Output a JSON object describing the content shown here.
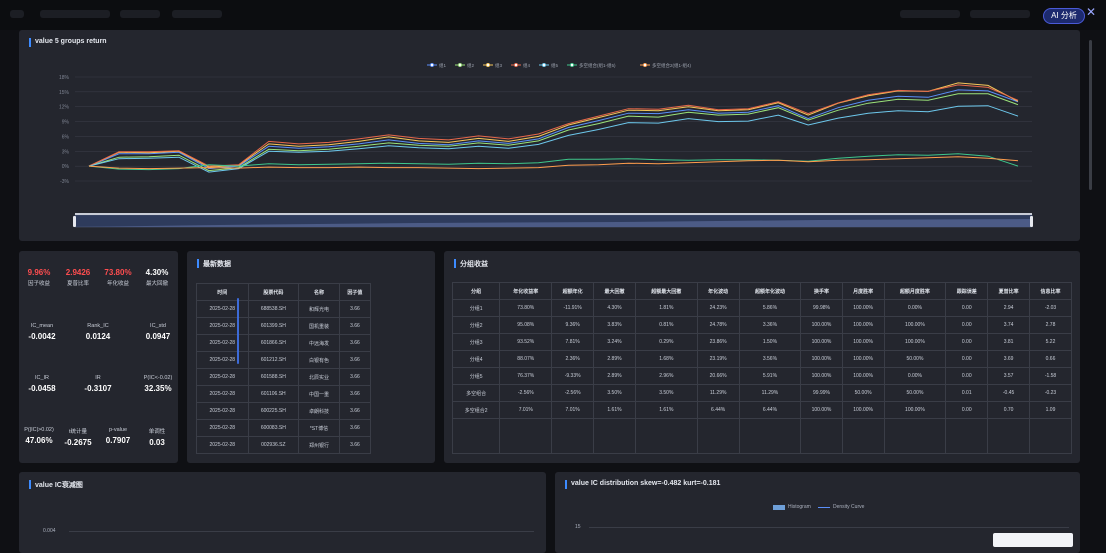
{
  "toolbar": {
    "ai_label": "AI 分析"
  },
  "line_chart": {
    "title": "value 5 groups return",
    "legend": [
      "组1",
      "组2",
      "组3",
      "组4",
      "组5",
      "多空组合(组1-组5)",
      "多空组合2(组1-组4)"
    ],
    "colors": [
      "#5b8ff9",
      "#9be37a",
      "#f6c75a",
      "#e8684a",
      "#6dc8ec",
      "#3fc78c",
      "#ff9d4d"
    ]
  },
  "chart_data": {
    "type": "line",
    "y_ticks": [
      "18%",
      "15%",
      "12%",
      "9%",
      "6%",
      "3%",
      "0%",
      "-3%"
    ],
    "ylim": [
      -3,
      18
    ],
    "grid": true,
    "legend_position": "top-center",
    "series": [
      {
        "name": "组1",
        "values": [
          0,
          2.5,
          2.5,
          2.8,
          -0.5,
          0,
          4,
          3.6,
          3.9,
          4.5,
          5.3,
          4.6,
          4.3,
          5.1,
          4.6,
          5.5,
          7.8,
          9.2,
          10.7,
          10.6,
          11.4,
          10.7,
          10.9,
          12.2,
          9.6,
          11.8,
          13.3,
          14.1,
          13.9,
          15.4,
          15.2,
          13.0
        ]
      },
      {
        "name": "组2",
        "values": [
          0,
          1.8,
          1.9,
          2.2,
          -0.9,
          -0.3,
          3.4,
          3.1,
          3.4,
          4.0,
          4.7,
          4.2,
          4.0,
          4.7,
          4.2,
          5.1,
          7.3,
          8.6,
          10.1,
          9.9,
          10.9,
          10.3,
          10.5,
          11.8,
          9.3,
          11.3,
          12.7,
          13.5,
          13.3,
          14.6,
          14.6,
          12.4
        ]
      },
      {
        "name": "组3",
        "values": [
          0,
          2.8,
          2.7,
          3.0,
          -0.2,
          0.2,
          4.5,
          4.0,
          4.3,
          5.0,
          5.9,
          5.1,
          4.8,
          5.6,
          5.0,
          6.0,
          8.3,
          9.8,
          11.3,
          11.2,
          12.0,
          11.2,
          11.4,
          12.8,
          10.3,
          12.7,
          14.2,
          15.2,
          15.1,
          16.8,
          16.3,
          13.1
        ]
      },
      {
        "name": "组4",
        "values": [
          0,
          2.9,
          2.9,
          3.1,
          0.0,
          0.3,
          5.0,
          4.5,
          4.8,
          5.5,
          6.3,
          5.6,
          5.3,
          6.1,
          5.5,
          6.5,
          8.6,
          10.1,
          11.6,
          11.5,
          12.3,
          11.4,
          11.6,
          13.0,
          10.6,
          12.8,
          14.4,
          15.3,
          15.1,
          16.4,
          15.9,
          13.3
        ]
      },
      {
        "name": "组5",
        "values": [
          0,
          1.5,
          1.6,
          1.8,
          -1.2,
          -0.5,
          3.0,
          2.8,
          3.0,
          3.5,
          4.1,
          3.7,
          3.5,
          4.0,
          3.6,
          4.4,
          6.2,
          7.4,
          8.8,
          8.7,
          9.6,
          9.0,
          9.1,
          10.3,
          8.3,
          9.7,
          10.7,
          11.2,
          11.0,
          12.1,
          12.2,
          10.1
        ]
      },
      {
        "name": "多空组合(组1-组5)",
        "values": [
          0,
          -0.6,
          -0.7,
          -0.5,
          0.3,
          0,
          0.5,
          0.3,
          0.4,
          0.5,
          0.6,
          0.5,
          0.4,
          0.6,
          0.5,
          0.7,
          1.4,
          1.4,
          1.5,
          1.3,
          1.2,
          1.3,
          1.3,
          1.2,
          1.0,
          1.6,
          2.0,
          2.3,
          2.2,
          2.5,
          2.0,
          0.0
        ]
      },
      {
        "name": "多空组合2(组1-组4)",
        "values": [
          0,
          -0.4,
          -0.5,
          -0.4,
          -0.3,
          -0.4,
          -0.2,
          -0.3,
          -0.3,
          -0.2,
          -0.3,
          -0.3,
          -0.4,
          -0.5,
          -0.4,
          -0.3,
          0.2,
          0.3,
          0.6,
          0.5,
          0.7,
          0.9,
          1.1,
          1.2,
          0.9,
          1.2,
          1.3,
          1.5,
          1.7,
          1.9,
          1.6,
          1.1
        ]
      }
    ]
  },
  "stats": {
    "row1": [
      {
        "value": "9.96%",
        "label": "因子收益",
        "color": "#ff4d4f"
      },
      {
        "value": "2.9426",
        "label": "夏普比率",
        "color": "#ff4d4f"
      },
      {
        "value": "73.80%",
        "label": "年化收益",
        "color": "#ff4d4f"
      },
      {
        "value": "4.30%",
        "label": "最大回撤",
        "color": "#ffffff"
      }
    ],
    "row2": [
      {
        "value": "-0.0042",
        "label": "IC_mean"
      },
      {
        "value": "0.0124",
        "label": "Rank_IC"
      },
      {
        "value": "0.0947",
        "label": "IC_std"
      }
    ],
    "row3": [
      {
        "value": "-0.0458",
        "label": "IC_IR"
      },
      {
        "value": "-0.3107",
        "label": "IR"
      },
      {
        "value": "32.35%",
        "label": "P(IC<-0.02)"
      }
    ],
    "row4": [
      {
        "value": "47.06%",
        "label": "P(|IC|>0.02)"
      },
      {
        "value": "-0.2675",
        "label": "t统计量"
      },
      {
        "value": "0.7907",
        "label": "p-value"
      },
      {
        "value": "0.03",
        "label": "单调性"
      }
    ]
  },
  "latest": {
    "title": "最新数据",
    "headers": [
      "时间",
      "股票代码",
      "名称",
      "因子值"
    ],
    "rows": [
      [
        "2025-02-28",
        "688538.SH",
        "和辉光电",
        "3.66"
      ],
      [
        "2025-02-28",
        "601399.SH",
        "国机重装",
        "3.66"
      ],
      [
        "2025-02-28",
        "601866.SH",
        "中远海发",
        "3.66"
      ],
      [
        "2025-02-28",
        "601212.SH",
        "白银有色",
        "3.66"
      ],
      [
        "2025-02-28",
        "601588.SH",
        "北辰实业",
        "3.66"
      ],
      [
        "2025-02-28",
        "601106.SH",
        "中国一重",
        "3.66"
      ],
      [
        "2025-02-28",
        "600225.SH",
        "卓朗科技",
        "3.66"
      ],
      [
        "2025-02-28",
        "600083.SH",
        "*ST博信",
        "3.66"
      ],
      [
        "2025-02-28",
        "002936.SZ",
        "郑州银行",
        "3.66"
      ]
    ]
  },
  "groups": {
    "title": "分组收益",
    "headers": [
      "分组",
      "年化收益率",
      "超额年化",
      "最大回撤",
      "超额最大回撤",
      "年化波动",
      "超额年化波动",
      "换手率",
      "月度胜率",
      "超额月度胜率",
      "跟踪误差",
      "夏普比率",
      "信息比率"
    ],
    "rows": [
      [
        "分组1",
        "73.80%",
        "-11.91%",
        "4.30%",
        "1.81%",
        "24.23%",
        "5.86%",
        "99.98%",
        "100.00%",
        "0.00%",
        "0.00",
        "2.94",
        "-2.03"
      ],
      [
        "分组2",
        "95.08%",
        "9.36%",
        "3.83%",
        "0.81%",
        "24.78%",
        "3.36%",
        "100.00%",
        "100.00%",
        "100.00%",
        "0.00",
        "3.74",
        "2.78"
      ],
      [
        "分组3",
        "93.52%",
        "7.81%",
        "3.24%",
        "0.29%",
        "23.86%",
        "1.50%",
        "100.00%",
        "100.00%",
        "100.00%",
        "0.00",
        "3.81",
        "5.22"
      ],
      [
        "分组4",
        "88.07%",
        "2.36%",
        "2.89%",
        "1.68%",
        "23.19%",
        "3.56%",
        "100.00%",
        "100.00%",
        "50.00%",
        "0.00",
        "3.69",
        "0.66"
      ],
      [
        "分组5",
        "76.37%",
        "-9.33%",
        "2.89%",
        "2.96%",
        "20.66%",
        "5.91%",
        "100.00%",
        "100.00%",
        "0.00%",
        "0.00",
        "3.57",
        "-1.58"
      ],
      [
        "多空组合",
        "-2.56%",
        "-2.56%",
        "3.50%",
        "3.50%",
        "11.29%",
        "11.29%",
        "99.99%",
        "50.00%",
        "50.00%",
        "0.01",
        "-0.45",
        "-0.23"
      ],
      [
        "多空组合2",
        "7.01%",
        "7.01%",
        "1.61%",
        "1.61%",
        "6.44%",
        "6.44%",
        "100.00%",
        "100.00%",
        "100.00%",
        "0.00",
        "0.70",
        "1.09"
      ]
    ]
  },
  "ic_decay": {
    "title": "value IC衰减图",
    "tick": "0.004"
  },
  "ic_dist": {
    "title": "value IC distribution skew=-0.482 kurt=-0.181",
    "legend": [
      "Histogram",
      "Density Curve"
    ],
    "tick": "15"
  }
}
